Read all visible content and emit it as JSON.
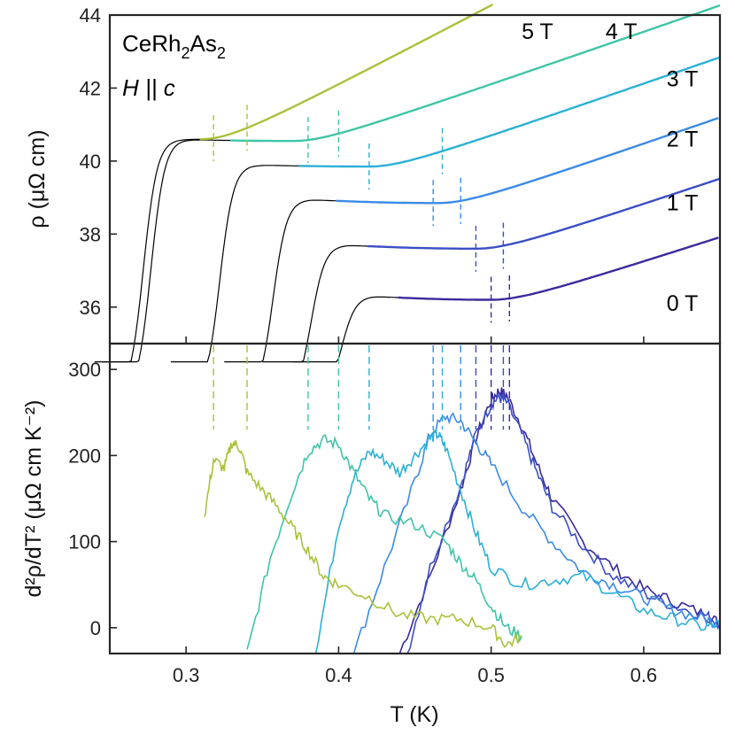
{
  "chart_data": [
    {
      "type": "line",
      "panel": "top",
      "title": "",
      "annotation": {
        "compound": "CeRh2As2",
        "compound_parts": [
          "CeRh",
          "2",
          "As",
          "2"
        ],
        "field_direction": "H || c"
      },
      "xlabel": "",
      "ylabel": "ρ (μΩ cm)",
      "xlim": [
        0.25,
        0.65
      ],
      "ylim": [
        35,
        44
      ],
      "yticks": [
        36,
        38,
        40,
        42,
        44
      ],
      "ytick_labels": [
        "36",
        "38",
        "40",
        "42",
        "44"
      ],
      "series": [
        {
          "name": "0 T",
          "label": "0 T",
          "color": "#3a2a9c",
          "label_at": [
            0.615,
            35.9
          ],
          "T_c_onset": 0.39,
          "plateau": 36.3,
          "minimum": 36.2,
          "T_min": 0.5,
          "slope_high_T": 13.5,
          "line_colored_from": 0.44,
          "markers": [
            0.5,
            0.512
          ]
        },
        {
          "name": "1 T",
          "label": "1 T",
          "color": "#3b4ec4",
          "label_at": [
            0.615,
            38.65
          ],
          "T_c_onset": 0.37,
          "plateau": 37.7,
          "minimum": 37.6,
          "T_min": 0.49,
          "slope_high_T": 14.0,
          "line_colored_from": 0.42,
          "markers": [
            0.49,
            0.508
          ]
        },
        {
          "name": "2 T",
          "label": "2 T",
          "color": "#3a8ae6",
          "label_at": [
            0.615,
            40.4
          ],
          "T_c_onset": 0.345,
          "plateau": 38.95,
          "minimum": 38.85,
          "T_min": 0.465,
          "slope_high_T": 14.5,
          "line_colored_from": 0.4,
          "markers": [
            0.462,
            0.48
          ]
        },
        {
          "name": "3 T",
          "label": "3 T",
          "color": "#2bb0d6",
          "label_at": [
            0.615,
            42.05
          ],
          "T_c_onset": 0.31,
          "plateau": 39.9,
          "minimum": 39.85,
          "T_min": 0.42,
          "slope_high_T": 14.5,
          "line_colored_from": 0.375,
          "markers": [
            0.42,
            0.468
          ]
        },
        {
          "name": "4 T",
          "label": "4 T",
          "color": "#3fc4a6",
          "label_at": [
            0.575,
            43.35
          ],
          "T_c_onset": 0.265,
          "plateau": 40.6,
          "minimum": 40.55,
          "T_min": 0.37,
          "slope_high_T": 14.5,
          "line_colored_from": 0.33,
          "markers": [
            0.38,
            0.4
          ]
        },
        {
          "name": "5 T",
          "label": "5 T",
          "color": "#a9c23a",
          "label_at": [
            0.52,
            43.35
          ],
          "T_c_onset": 0.26,
          "plateau": 40.6,
          "minimum": 40.6,
          "T_min": 0.31,
          "slope_high_T": 22.0,
          "line_colored_from": 0.31,
          "markers": [
            0.318,
            0.34
          ]
        }
      ]
    },
    {
      "type": "line",
      "panel": "bottom",
      "title": "",
      "xlabel": "T (K)",
      "ylabel": "d²ρ/dT² (μΩ cm K⁻²)",
      "xlim": [
        0.25,
        0.65
      ],
      "ylim": [
        -30,
        330
      ],
      "xticks": [
        0.3,
        0.4,
        0.5,
        0.6
      ],
      "xtick_labels": [
        "0.3",
        "0.4",
        "0.5",
        "0.6"
      ],
      "yticks": [
        0,
        100,
        200,
        300
      ],
      "ytick_labels": [
        "0",
        "100",
        "200",
        "300"
      ],
      "series": [
        {
          "name": "0 T",
          "color": "#3a2a9c",
          "x": [
            0.44,
            0.46,
            0.48,
            0.49,
            0.5,
            0.505,
            0.51,
            0.52,
            0.53,
            0.54,
            0.56,
            0.58,
            0.6,
            0.62,
            0.64,
            0.65
          ],
          "y": [
            -30,
            60,
            160,
            220,
            265,
            275,
            270,
            235,
            190,
            150,
            100,
            70,
            45,
            30,
            15,
            5
          ]
        },
        {
          "name": "1 T",
          "color": "#3b4ec4",
          "x": [
            0.445,
            0.46,
            0.48,
            0.49,
            0.5,
            0.505,
            0.51,
            0.52,
            0.53,
            0.54,
            0.56,
            0.58,
            0.6,
            0.62,
            0.64,
            0.65
          ],
          "y": [
            -30,
            70,
            165,
            225,
            260,
            268,
            262,
            225,
            180,
            140,
            95,
            60,
            40,
            25,
            15,
            5
          ]
        },
        {
          "name": "2 T",
          "color": "#3a8ae6",
          "x": [
            0.41,
            0.43,
            0.45,
            0.46,
            0.47,
            0.48,
            0.49,
            0.5,
            0.52,
            0.54,
            0.56,
            0.58,
            0.6,
            0.62,
            0.64,
            0.65
          ],
          "y": [
            -30,
            70,
            170,
            225,
            245,
            240,
            215,
            190,
            140,
            100,
            65,
            50,
            35,
            20,
            10,
            5
          ]
        },
        {
          "name": "3 T",
          "color": "#2bb0d6",
          "x": [
            0.385,
            0.4,
            0.41,
            0.42,
            0.43,
            0.44,
            0.45,
            0.46,
            0.465,
            0.47,
            0.48,
            0.49,
            0.5,
            0.52,
            0.54,
            0.56,
            0.58,
            0.6,
            0.62,
            0.64,
            0.65
          ],
          "y": [
            -30,
            120,
            175,
            205,
            195,
            180,
            200,
            220,
            225,
            210,
            160,
            110,
            70,
            50,
            55,
            60,
            40,
            20,
            10,
            0,
            5
          ]
        },
        {
          "name": "4 T",
          "color": "#3fc4a6",
          "x": [
            0.34,
            0.355,
            0.37,
            0.38,
            0.39,
            0.4,
            0.41,
            0.42,
            0.43,
            0.45,
            0.47,
            0.48,
            0.49,
            0.5,
            0.51,
            0.52
          ],
          "y": [
            -30,
            80,
            160,
            205,
            218,
            213,
            180,
            150,
            130,
            120,
            100,
            75,
            55,
            25,
            0,
            -10
          ]
        },
        {
          "name": "5 T",
          "color": "#a9c23a",
          "x": [
            0.312,
            0.318,
            0.325,
            0.33,
            0.335,
            0.34,
            0.35,
            0.36,
            0.37,
            0.38,
            0.39,
            0.4,
            0.42,
            0.44,
            0.46,
            0.48,
            0.5,
            0.51,
            0.52
          ],
          "y": [
            130,
            195,
            185,
            215,
            210,
            180,
            160,
            140,
            115,
            90,
            60,
            50,
            35,
            15,
            10,
            10,
            0,
            -20,
            -10
          ]
        }
      ]
    }
  ]
}
